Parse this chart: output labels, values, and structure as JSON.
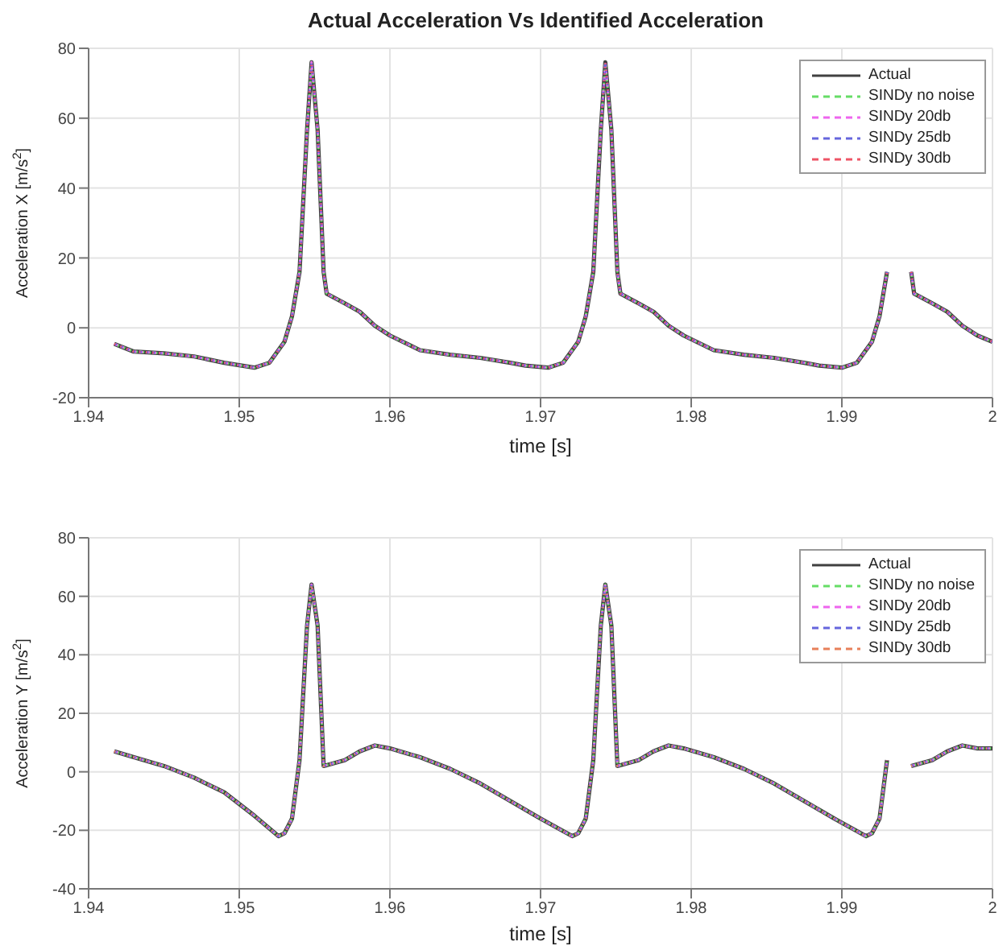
{
  "chart_data": [
    {
      "type": "line",
      "title": "Actual Acceleration Vs Identified Acceleration",
      "xlabel": "time [s]",
      "ylabel": "Acceleration X [m/s$^{2}$]",
      "x": [
        1.9417,
        1.943,
        1.945,
        1.947,
        1.949,
        1.951,
        1.952,
        1.953,
        1.9535,
        1.954,
        1.9545,
        1.9548,
        1.9552,
        1.9556,
        1.9558,
        1.957,
        1.958,
        1.959,
        1.96,
        1.962,
        1.964,
        1.966,
        1.968,
        1.969,
        1.9705,
        1.9715,
        1.9725,
        1.973,
        1.9735,
        1.974,
        1.9743,
        1.9747,
        1.9751,
        1.9753,
        1.9765,
        1.9775,
        1.9785,
        1.9795,
        1.9815,
        1.9835,
        1.9855,
        1.9875,
        1.9885,
        1.99,
        1.991,
        1.992,
        1.9925,
        1.993,
        1.9935,
        1.9938,
        1.9942,
        1.9946,
        1.9948,
        1.996,
        1.997,
        1.998,
        1.999,
        2
      ],
      "series": [
        {
          "name": "Actual",
          "color": "#404040",
          "line_style": "solid",
          "values": [
            -4.6,
            -6.8,
            -7.3,
            -8.2,
            -10,
            -11.4,
            -10,
            -4,
            3.3,
            16,
            56.7,
            76,
            56.7,
            16,
            9.8,
            7,
            4.6,
            0.6,
            -2.2,
            -6.4,
            -7.7,
            -8.6,
            -10,
            -10.8,
            -11.4,
            -10,
            -4,
            3.3,
            16,
            56.7,
            76,
            56.7,
            16,
            9.8,
            7,
            4.6,
            0.6,
            -2.2,
            -6.4,
            -7.7,
            -8.6,
            -10,
            -10.8,
            -11.4,
            -10,
            -4,
            3.3,
            16,
            null,
            null,
            null,
            16,
            9.8,
            7,
            4.6,
            0.6,
            -2.2,
            -4
          ]
        },
        {
          "name": "SINDy no noise",
          "color": "#66dd66",
          "line_style": "dashed",
          "values": [
            -4.6,
            -6.8,
            -7.3,
            -8.2,
            -10,
            -11.4,
            -10,
            -4,
            3.3,
            16,
            56.7,
            76,
            56.7,
            16,
            9.8,
            7,
            4.6,
            0.6,
            -2.2,
            -6.4,
            -7.7,
            -8.6,
            -10,
            -10.8,
            -11.4,
            -10,
            -4,
            3.3,
            16,
            56.7,
            76,
            56.7,
            16,
            9.8,
            7,
            4.6,
            0.6,
            -2.2,
            -6.4,
            -7.7,
            -8.6,
            -10,
            -10.8,
            -11.4,
            -10,
            -4,
            3.3,
            16,
            null,
            null,
            null,
            16,
            9.8,
            7,
            4.6,
            0.6,
            -2.2,
            -4
          ]
        },
        {
          "name": "SINDy 20db",
          "color": "#ee66ee",
          "line_style": "dashed",
          "values": [
            -4.6,
            -6.8,
            -7.3,
            -8.2,
            -10,
            -11.4,
            -10,
            -4,
            3.3,
            16,
            56.7,
            76,
            56.7,
            16,
            9.8,
            7,
            4.6,
            0.6,
            -2.2,
            -6.4,
            -7.7,
            -8.6,
            -10,
            -10.8,
            -11.4,
            -10,
            -4,
            3.3,
            16,
            56.7,
            76,
            56.7,
            16,
            9.8,
            7,
            4.6,
            0.6,
            -2.2,
            -6.4,
            -7.7,
            -8.6,
            -10,
            -10.8,
            -11.4,
            -10,
            -4,
            3.3,
            16,
            null,
            null,
            null,
            16,
            9.8,
            7,
            4.6,
            0.6,
            -2.2,
            -4
          ]
        },
        {
          "name": "SINDy 25db",
          "color": "#6666dd",
          "line_style": "dashed",
          "values": [
            -4.6,
            -6.8,
            -7.3,
            -8.2,
            -10,
            -11.4,
            -10,
            -4,
            3.3,
            16,
            56.7,
            76,
            56.7,
            16,
            9.8,
            7,
            4.6,
            0.6,
            -2.2,
            -6.4,
            -7.7,
            -8.6,
            -10,
            -10.8,
            -11.4,
            -10,
            -4,
            3.3,
            16,
            56.7,
            76,
            56.7,
            16,
            9.8,
            7,
            4.6,
            0.6,
            -2.2,
            -6.4,
            -7.7,
            -8.6,
            -10,
            -10.8,
            -11.4,
            -10,
            -4,
            3.3,
            16,
            null,
            null,
            null,
            16,
            9.8,
            7,
            4.6,
            0.6,
            -2.2,
            -4
          ]
        },
        {
          "name": "SINDy 30db",
          "color": "#ee5566",
          "line_style": "dashed",
          "values": [
            -4.6,
            -6.8,
            -7.3,
            -8.2,
            -10,
            -11.4,
            -10,
            -4,
            3.3,
            16,
            56.7,
            76,
            56.7,
            16,
            9.8,
            7,
            4.6,
            0.6,
            -2.2,
            -6.4,
            -7.7,
            -8.6,
            -10,
            -10.8,
            -11.4,
            -10,
            -4,
            3.3,
            16,
            56.7,
            76,
            56.7,
            16,
            9.8,
            7,
            4.6,
            0.6,
            -2.2,
            -6.4,
            -7.7,
            -8.6,
            -10,
            -10.8,
            -11.4,
            -10,
            -4,
            3.3,
            16,
            null,
            null,
            null,
            16,
            9.8,
            7,
            4.6,
            0.6,
            -2.2,
            -4
          ]
        }
      ],
      "xlim": [
        1.94,
        2
      ],
      "xticks": [
        1.94,
        1.95,
        1.96,
        1.97,
        1.98,
        1.99,
        2
      ],
      "ylim": [
        -20,
        80
      ],
      "yticks": [
        -20,
        0,
        20,
        40,
        60,
        80
      ],
      "grid": true,
      "legend": "top right",
      "marker": "none"
    },
    {
      "type": "line",
      "xlabel": "time [s]",
      "ylabel": "Acceleration Y [m/s$^{2}$]",
      "x": [
        1.9417,
        1.943,
        1.945,
        1.947,
        1.949,
        1.951,
        1.9526,
        1.953,
        1.9535,
        1.954,
        1.9545,
        1.9548,
        1.9552,
        1.9556,
        1.957,
        1.958,
        1.959,
        1.96,
        1.962,
        1.964,
        1.966,
        1.968,
        1.97,
        1.9721,
        1.9725,
        1.973,
        1.9735,
        1.974,
        1.9743,
        1.9747,
        1.9751,
        1.9765,
        1.9775,
        1.9785,
        1.9795,
        1.9815,
        1.9835,
        1.9855,
        1.9875,
        1.9895,
        1.9916,
        1.992,
        1.9925,
        1.993,
        1.9935,
        1.9938,
        1.9942,
        1.9946,
        1.996,
        1.997,
        1.998,
        1.999,
        2
      ],
      "series": [
        {
          "name": "Actual",
          "color": "#404040",
          "line_style": "solid",
          "values": [
            7,
            5,
            2,
            -2,
            -7,
            -15,
            -22,
            -21,
            -16,
            4,
            50,
            64,
            50,
            2,
            4,
            7,
            9,
            8,
            5,
            1,
            -4,
            -10,
            -16,
            -22,
            -21,
            -16,
            4,
            50,
            64,
            50,
            2,
            4,
            7,
            9,
            8,
            5,
            1,
            -4,
            -10,
            -16,
            -22,
            -21,
            -16,
            4,
            null,
            null,
            null,
            2,
            4,
            7,
            9,
            8,
            8
          ]
        },
        {
          "name": "SINDy no noise",
          "color": "#66dd66",
          "line_style": "dashed",
          "values": [
            7,
            5,
            2,
            -2,
            -7,
            -15,
            -22,
            -21,
            -16,
            4,
            50,
            64,
            50,
            2,
            4,
            7,
            9,
            8,
            5,
            1,
            -4,
            -10,
            -16,
            -22,
            -21,
            -16,
            4,
            50,
            64,
            50,
            2,
            4,
            7,
            9,
            8,
            5,
            1,
            -4,
            -10,
            -16,
            -22,
            -21,
            -16,
            4,
            null,
            null,
            null,
            2,
            4,
            7,
            9,
            8,
            8
          ]
        },
        {
          "name": "SINDy 20db",
          "color": "#ee66ee",
          "line_style": "dashed",
          "values": [
            7,
            5,
            2,
            -2,
            -7,
            -15,
            -22,
            -21,
            -16,
            4,
            50,
            64,
            50,
            2,
            4,
            7,
            9,
            8,
            5,
            1,
            -4,
            -10,
            -16,
            -22,
            -21,
            -16,
            4,
            50,
            64,
            50,
            2,
            4,
            7,
            9,
            8,
            5,
            1,
            -4,
            -10,
            -16,
            -22,
            -21,
            -16,
            4,
            null,
            null,
            null,
            2,
            4,
            7,
            9,
            8,
            8
          ]
        },
        {
          "name": "SINDy 25db",
          "color": "#6666dd",
          "line_style": "dashed",
          "values": [
            7,
            5,
            2,
            -2,
            -7,
            -15,
            -22,
            -21,
            -16,
            4,
            50,
            64,
            50,
            2,
            4,
            7,
            9,
            8,
            5,
            1,
            -4,
            -10,
            -16,
            -22,
            -21,
            -16,
            4,
            50,
            64,
            50,
            2,
            4,
            7,
            9,
            8,
            5,
            1,
            -4,
            -10,
            -16,
            -22,
            -21,
            -16,
            4,
            null,
            null,
            null,
            2,
            4,
            7,
            9,
            8,
            8
          ]
        },
        {
          "name": "SINDy 30db",
          "color": "#e8805a",
          "line_style": "dashed",
          "values": [
            7,
            5,
            2,
            -2,
            -7,
            -15,
            -22,
            -21,
            -16,
            4,
            50,
            64,
            50,
            2,
            4,
            7,
            9,
            8,
            5,
            1,
            -4,
            -10,
            -16,
            -22,
            -21,
            -16,
            4,
            50,
            64,
            50,
            2,
            4,
            7,
            9,
            8,
            5,
            1,
            -4,
            -10,
            -16,
            -22,
            -21,
            -16,
            4,
            null,
            null,
            null,
            2,
            4,
            7,
            9,
            8,
            8
          ]
        }
      ],
      "xlim": [
        1.94,
        2
      ],
      "xticks": [
        1.94,
        1.95,
        1.96,
        1.97,
        1.98,
        1.99,
        2
      ],
      "ylim": [
        -40,
        80
      ],
      "yticks": [
        -40,
        -20,
        0,
        20,
        40,
        60,
        80
      ],
      "grid": true,
      "legend": "top right",
      "marker": "none"
    }
  ]
}
